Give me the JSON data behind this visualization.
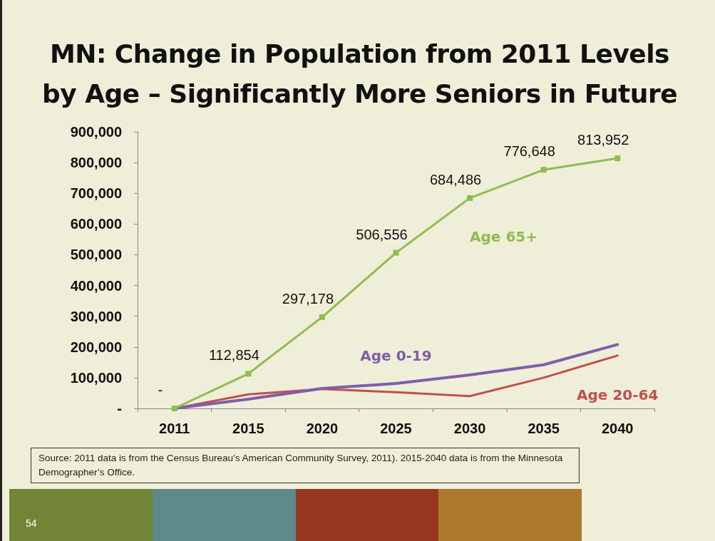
{
  "chart_data": {
    "type": "line",
    "title": "MN: Change in Population from 2011 Levels\nby Age – Significantly More Seniors in Future",
    "categories": [
      "2011",
      "2015",
      "2020",
      "2025",
      "2030",
      "2035",
      "2040"
    ],
    "series": [
      {
        "name": "Age 65+",
        "color": "#8fbc4f",
        "marker": "square",
        "values": [
          0,
          112854,
          297178,
          506556,
          684486,
          776648,
          813952
        ],
        "value_labels": [
          "-",
          "112,854",
          "297,178",
          "506,556",
          "684,486",
          "776,648",
          "813,952"
        ]
      },
      {
        "name": "Age 0-19",
        "color": "#7f5ea8",
        "marker": "none",
        "values": [
          0,
          30000,
          65000,
          81000,
          109000,
          142000,
          208000
        ]
      },
      {
        "name": "Age 20-64",
        "color": "#c0504d",
        "marker": "none",
        "values": [
          0,
          46000,
          63000,
          53000,
          40000,
          100000,
          172000
        ]
      }
    ],
    "ylim": [
      0,
      900000
    ],
    "yticks": [
      {
        "value": 0,
        "label": "-"
      },
      {
        "value": 100000,
        "label": "100,000"
      },
      {
        "value": 200000,
        "label": "200,000"
      },
      {
        "value": 300000,
        "label": "300,000"
      },
      {
        "value": 400000,
        "label": "400,000"
      },
      {
        "value": 500000,
        "label": "500,000"
      },
      {
        "value": 600000,
        "label": "600,000"
      },
      {
        "value": 700000,
        "label": "700,000"
      },
      {
        "value": 800000,
        "label": "800,000"
      },
      {
        "value": 900000,
        "label": "900,000"
      }
    ],
    "grid": false,
    "legend": false,
    "annotations": [
      "Source:  2011 data is from the Census Bureau’s American Community Survey, 2011).  2015-2040 data is from the Minnesota Demographer’s Office.",
      "54"
    ]
  }
}
